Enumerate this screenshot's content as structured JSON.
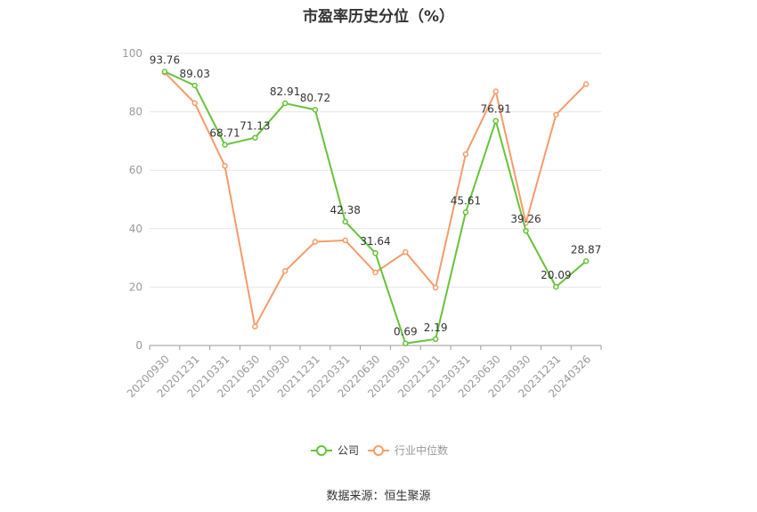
{
  "title": "市盈率历史分位（%）",
  "source": "数据来源：恒生聚源",
  "colors": {
    "company": "#67c23a",
    "industry": "#f39c6b",
    "grid": "#e6e6e6",
    "axis": "#999999"
  },
  "chart_data": {
    "type": "line",
    "title": "市盈率历史分位（%）",
    "categories": [
      "20200930",
      "20201231",
      "20210331",
      "20210630",
      "20210930",
      "20211231",
      "20220331",
      "20220630",
      "20220930",
      "20221231",
      "20230331",
      "20230630",
      "20230930",
      "20231231",
      "20240326"
    ],
    "ylim": [
      0,
      100
    ],
    "yticks": [
      0,
      20,
      40,
      60,
      80,
      100
    ],
    "grid": true,
    "legend": "bottom",
    "series": [
      {
        "name": "公司",
        "values": [
          93.76,
          89.03,
          68.71,
          71.13,
          82.91,
          80.72,
          42.38,
          31.64,
          0.69,
          2.19,
          45.61,
          76.91,
          39.26,
          20.09,
          28.87
        ],
        "labels": [
          "93.76",
          "89.03",
          "68.71",
          "71.13",
          "82.91",
          "80.72",
          "42.38",
          "31.64",
          "0.69",
          "2.19",
          "45.61",
          "76.91",
          "39.26",
          "20.09",
          "28.87"
        ]
      },
      {
        "name": "行业中位数",
        "values": [
          93.5,
          83,
          61.5,
          6.5,
          25.5,
          35.5,
          36,
          25,
          32,
          19.8,
          65.5,
          87,
          42,
          79,
          89.5
        ]
      }
    ]
  }
}
